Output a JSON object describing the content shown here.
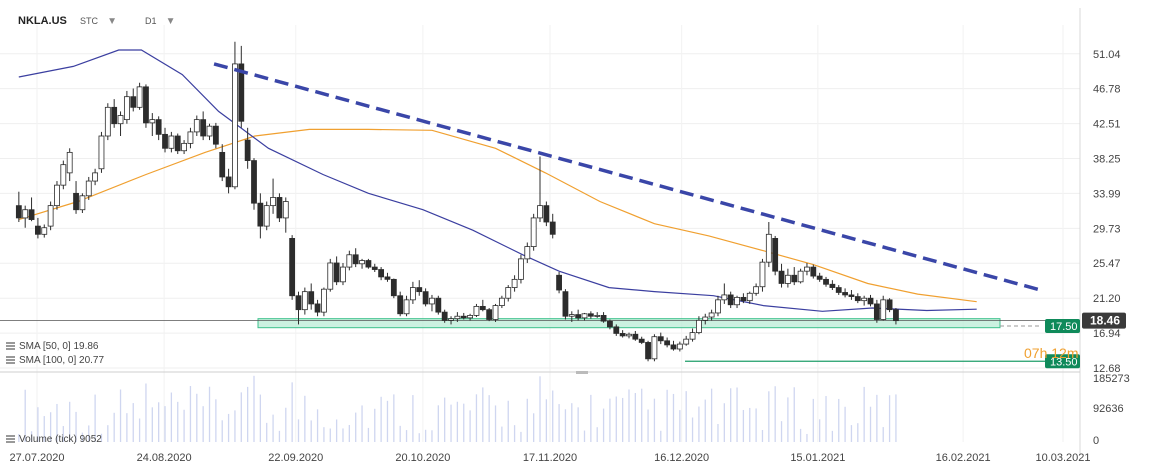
{
  "header": {
    "symbol": "NKLA.US",
    "chart_type": "STC",
    "timeframe": "D1",
    "dropdown_glyph": "▼"
  },
  "indicators": [
    {
      "label": "SMA [50, 0] 19.86",
      "color": "#3b3fa0"
    },
    {
      "label": "SMA [100, 0] 20.77",
      "color": "#f0a030"
    }
  ],
  "volume_label": "Volume (tick) 9052",
  "countdown": "07h 12m",
  "price_badges": {
    "current": "18.46",
    "zone": "17.50",
    "support": "13.50"
  },
  "colors": {
    "bull_body": "#ffffff",
    "bear_body": "#2c2c2c",
    "sma50": "#3b3fa0",
    "sma100": "#f0a030",
    "trendline": "#3a46a8",
    "zone_fill": "#b9ecd6",
    "zone_stroke": "#3cc08c",
    "support_line": "#1f9e6a",
    "badge_green": "#0f8a5a",
    "badge_dark": "#3a3a3a",
    "countdown": "#f0a030"
  },
  "chart_data": {
    "type": "candlestick",
    "y_ticks": [
      51.04,
      46.78,
      42.51,
      38.25,
      33.99,
      29.73,
      25.47,
      21.2,
      16.94,
      12.68
    ],
    "y_tick_labels": [
      "51.04",
      "46.78",
      "42.51",
      "38.25",
      "33.99",
      "29.73",
      "25.47",
      "21.20",
      "16.94",
      "12.68"
    ],
    "ylim": [
      12.68,
      53.0
    ],
    "volume_ticks": [
      "185273",
      "92636",
      "0"
    ],
    "volume_max": 185273,
    "x_range": [
      "2020-07-23",
      "2021-03-12"
    ],
    "x_ticks": [
      "2020-07-27",
      "2020-08-24",
      "2020-09-22",
      "2020-10-20",
      "2020-11-17",
      "2020-12-16",
      "2021-01-15",
      "2021-02-16",
      "2021-03-10"
    ],
    "x_tick_labels": [
      "27.07.2020",
      "24.08.2020",
      "22.09.2020",
      "20.10.2020",
      "17.11.2020",
      "16.12.2020",
      "15.01.2021",
      "16.02.2021",
      "10.03.2021"
    ],
    "candles": {
      "start_date": "2020-07-23",
      "step_days": 1.4,
      "ohlc": [
        [
          32.5,
          34.2,
          30.5,
          31.0
        ],
        [
          31.0,
          32.5,
          29.8,
          32.0
        ],
        [
          32.0,
          33.5,
          30.6,
          30.8
        ],
        [
          30.0,
          31.0,
          28.5,
          29.0
        ],
        [
          29.0,
          30.2,
          28.6,
          29.8
        ],
        [
          30.0,
          33.0,
          29.5,
          32.5
        ],
        [
          32.5,
          35.5,
          32.0,
          35.0
        ],
        [
          35.0,
          38.0,
          34.5,
          37.5
        ],
        [
          36.5,
          39.5,
          35.5,
          39.0
        ],
        [
          34.0,
          35.5,
          31.5,
          32.0
        ],
        [
          32.0,
          34.0,
          31.6,
          33.7
        ],
        [
          33.7,
          36.0,
          33.2,
          35.5
        ],
        [
          35.5,
          37.0,
          35.0,
          36.5
        ],
        [
          37.0,
          41.5,
          36.5,
          41.0
        ],
        [
          41.0,
          45.0,
          40.5,
          44.5
        ],
        [
          44.5,
          45.5,
          42.0,
          42.5
        ],
        [
          42.5,
          44.0,
          41.0,
          43.5
        ],
        [
          43.0,
          46.5,
          42.5,
          45.8
        ],
        [
          45.8,
          46.8,
          44.0,
          44.5
        ],
        [
          44.5,
          47.5,
          44.2,
          47.0
        ],
        [
          47.0,
          47.3,
          42.0,
          42.6
        ],
        [
          42.6,
          43.8,
          41.0,
          43.0
        ],
        [
          43.0,
          43.4,
          40.5,
          41.2
        ],
        [
          41.2,
          42.0,
          39.0,
          39.5
        ],
        [
          39.5,
          41.5,
          39.0,
          41.0
        ],
        [
          41.0,
          41.3,
          38.8,
          39.2
        ],
        [
          39.2,
          40.5,
          38.8,
          40.1
        ],
        [
          40.1,
          42.0,
          39.5,
          41.5
        ],
        [
          41.5,
          43.5,
          41.0,
          43.0
        ],
        [
          43.0,
          44.0,
          40.5,
          41.0
        ],
        [
          41.0,
          42.5,
          40.5,
          42.2
        ],
        [
          42.2,
          42.6,
          39.5,
          40.0
        ],
        [
          39.0,
          40.0,
          35.5,
          36.0
        ],
        [
          36.0,
          37.0,
          34.0,
          34.8
        ],
        [
          34.8,
          52.5,
          34.5,
          49.8
        ],
        [
          49.8,
          52.0,
          42.0,
          42.8
        ],
        [
          40.5,
          42.0,
          37.0,
          38.0
        ],
        [
          38.0,
          38.3,
          32.0,
          32.8
        ],
        [
          32.8,
          34.0,
          28.5,
          30.0
        ],
        [
          30.0,
          33.0,
          29.5,
          32.5
        ],
        [
          32.5,
          35.8,
          31.5,
          33.5
        ],
        [
          33.5,
          34.0,
          30.5,
          31.0
        ],
        [
          31.0,
          33.5,
          29.2,
          33.0
        ],
        [
          28.5,
          28.9,
          21.0,
          21.5
        ],
        [
          21.5,
          22.0,
          18.0,
          19.8
        ],
        [
          19.8,
          22.5,
          19.2,
          22.0
        ],
        [
          22.0,
          23.0,
          19.8,
          20.5
        ],
        [
          20.5,
          21.0,
          19.0,
          19.5
        ],
        [
          19.5,
          22.5,
          19.0,
          22.3
        ],
        [
          22.3,
          26.0,
          22.0,
          25.5
        ],
        [
          25.5,
          26.3,
          22.8,
          23.2
        ],
        [
          23.2,
          25.5,
          22.8,
          25.0
        ],
        [
          25.0,
          27.0,
          24.6,
          26.5
        ],
        [
          26.5,
          27.3,
          25.0,
          25.4
        ],
        [
          25.4,
          26.0,
          24.8,
          25.8
        ],
        [
          25.8,
          26.0,
          24.8,
          25.0
        ],
        [
          25.0,
          25.4,
          24.4,
          24.7
        ],
        [
          24.7,
          25.0,
          23.4,
          23.8
        ],
        [
          23.8,
          24.3,
          23.2,
          23.5
        ],
        [
          23.5,
          23.6,
          21.2,
          21.5
        ],
        [
          21.5,
          22.0,
          19.0,
          19.3
        ],
        [
          19.3,
          21.5,
          19.0,
          21.0
        ],
        [
          21.0,
          23.2,
          20.5,
          22.5
        ],
        [
          22.5,
          23.4,
          21.5,
          22.0
        ],
        [
          22.0,
          22.4,
          20.2,
          20.5
        ],
        [
          20.5,
          21.6,
          19.6,
          21.2
        ],
        [
          21.2,
          21.5,
          19.2,
          19.5
        ],
        [
          19.5,
          19.8,
          18.2,
          18.5
        ],
        [
          18.5,
          19.0,
          18.0,
          18.7
        ],
        [
          18.7,
          19.5,
          18.3,
          19.0
        ],
        [
          19.0,
          19.4,
          18.6,
          18.8
        ],
        [
          18.8,
          19.3,
          18.5,
          19.1
        ],
        [
          19.1,
          20.5,
          18.9,
          20.2
        ],
        [
          20.2,
          21.0,
          19.6,
          19.8
        ],
        [
          19.8,
          20.0,
          18.4,
          18.6
        ],
        [
          18.6,
          20.5,
          18.3,
          20.3
        ],
        [
          20.3,
          21.5,
          20.0,
          21.2
        ],
        [
          21.2,
          22.8,
          20.8,
          22.5
        ],
        [
          22.5,
          24.0,
          22.0,
          23.5
        ],
        [
          23.5,
          26.5,
          23.0,
          26.0
        ],
        [
          26.0,
          28.0,
          25.5,
          27.5
        ],
        [
          27.5,
          31.5,
          27.0,
          31.0
        ],
        [
          31.0,
          38.5,
          30.5,
          32.5
        ],
        [
          32.5,
          33.0,
          30.0,
          30.5
        ],
        [
          30.5,
          31.5,
          28.5,
          29.0
        ],
        [
          24.0,
          24.4,
          21.8,
          22.2
        ],
        [
          22.0,
          22.3,
          18.6,
          19.0
        ],
        [
          19.0,
          19.6,
          18.3,
          19.2
        ],
        [
          19.2,
          19.8,
          18.5,
          18.8
        ],
        [
          18.8,
          19.4,
          18.5,
          19.3
        ],
        [
          19.3,
          19.6,
          18.7,
          19.0
        ],
        [
          19.0,
          19.5,
          18.8,
          19.1
        ],
        [
          19.1,
          19.5,
          18.2,
          18.4
        ],
        [
          18.4,
          18.6,
          17.4,
          17.7
        ],
        [
          17.7,
          18.0,
          16.6,
          16.9
        ],
        [
          16.9,
          17.3,
          16.4,
          16.6
        ],
        [
          16.6,
          17.0,
          16.3,
          16.8
        ],
        [
          16.8,
          17.2,
          16.0,
          16.2
        ],
        [
          16.2,
          16.5,
          15.6,
          15.8
        ],
        [
          15.8,
          16.0,
          13.5,
          13.8
        ],
        [
          13.8,
          16.8,
          13.5,
          16.5
        ],
        [
          16.5,
          17.0,
          15.6,
          16.0
        ],
        [
          16.0,
          16.4,
          15.2,
          15.5
        ],
        [
          15.5,
          16.0,
          14.8,
          15.0
        ],
        [
          15.0,
          15.9,
          14.7,
          15.6
        ],
        [
          15.6,
          16.6,
          15.4,
          16.2
        ],
        [
          16.2,
          17.5,
          15.9,
          17.0
        ],
        [
          17.0,
          19.0,
          16.8,
          18.5
        ],
        [
          18.5,
          19.3,
          18.0,
          18.9
        ],
        [
          18.9,
          19.8,
          18.5,
          19.4
        ],
        [
          19.4,
          21.5,
          19.0,
          21.0
        ],
        [
          21.0,
          23.0,
          20.5,
          21.6
        ],
        [
          21.6,
          22.0,
          20.0,
          20.4
        ],
        [
          20.4,
          21.5,
          20.0,
          21.3
        ],
        [
          21.3,
          21.8,
          20.6,
          20.9
        ],
        [
          20.9,
          22.0,
          20.5,
          21.8
        ],
        [
          21.8,
          23.0,
          21.5,
          22.6
        ],
        [
          22.6,
          26.0,
          22.0,
          25.6
        ],
        [
          25.6,
          30.5,
          25.0,
          29.0
        ],
        [
          28.5,
          28.8,
          24.0,
          24.5
        ],
        [
          24.5,
          25.4,
          22.5,
          23.0
        ],
        [
          23.0,
          24.8,
          22.5,
          24.0
        ],
        [
          24.0,
          25.0,
          22.8,
          23.2
        ],
        [
          23.2,
          24.8,
          23.0,
          24.5
        ],
        [
          24.5,
          25.5,
          24.0,
          25.0
        ],
        [
          25.0,
          25.3,
          23.6,
          23.9
        ],
        [
          23.9,
          24.3,
          23.2,
          23.5
        ],
        [
          23.5,
          23.8,
          22.6,
          22.9
        ],
        [
          22.9,
          23.4,
          22.2,
          22.5
        ],
        [
          22.5,
          22.8,
          21.6,
          21.9
        ],
        [
          21.9,
          22.4,
          21.3,
          21.6
        ],
        [
          21.6,
          22.2,
          21.0,
          21.4
        ],
        [
          21.4,
          21.8,
          20.6,
          20.9
        ],
        [
          20.9,
          21.5,
          20.3,
          21.2
        ],
        [
          21.2,
          21.6,
          20.2,
          20.5
        ],
        [
          20.5,
          21.0,
          18.2,
          18.6
        ],
        [
          18.6,
          21.5,
          18.5,
          21.0
        ],
        [
          21.0,
          21.2,
          19.5,
          19.8
        ],
        [
          19.8,
          20.0,
          18.0,
          18.46
        ]
      ]
    },
    "sma50": [
      [
        "2020-07-23",
        48.2
      ],
      [
        "2020-08-04",
        49.5
      ],
      [
        "2020-08-14",
        51.5
      ],
      [
        "2020-08-19",
        51.5
      ],
      [
        "2020-08-28",
        48.5
      ],
      [
        "2020-09-05",
        44.0
      ],
      [
        "2020-09-16",
        39.5
      ],
      [
        "2020-09-28",
        36.3
      ],
      [
        "2020-10-08",
        34.0
      ],
      [
        "2020-10-20",
        32.0
      ],
      [
        "2020-10-31",
        29.5
      ],
      [
        "2020-11-11",
        26.5
      ],
      [
        "2020-11-19",
        24.5
      ],
      [
        "2020-11-30",
        22.5
      ],
      [
        "2020-12-10",
        22.0
      ],
      [
        "2020-12-23",
        21.5
      ],
      [
        "2021-01-03",
        20.3
      ],
      [
        "2021-01-16",
        19.6
      ],
      [
        "2021-01-27",
        20.0
      ],
      [
        "2021-02-08",
        19.7
      ],
      [
        "2021-02-19",
        19.86
      ]
    ],
    "sma100": [
      [
        "2020-07-23",
        30.8
      ],
      [
        "2020-08-05",
        33.0
      ],
      [
        "2020-08-20",
        36.3
      ],
      [
        "2020-09-02",
        39.0
      ],
      [
        "2020-09-13",
        41.0
      ],
      [
        "2020-09-25",
        41.8
      ],
      [
        "2020-10-08",
        41.8
      ],
      [
        "2020-10-22",
        41.7
      ],
      [
        "2020-11-05",
        39.5
      ],
      [
        "2020-11-16",
        36.5
      ],
      [
        "2020-11-28",
        33.0
      ],
      [
        "2020-12-10",
        30.3
      ],
      [
        "2020-12-22",
        28.8
      ],
      [
        "2021-01-03",
        27.0
      ],
      [
        "2021-01-14",
        25.3
      ],
      [
        "2021-01-26",
        23.0
      ],
      [
        "2021-02-06",
        21.7
      ],
      [
        "2021-02-19",
        20.77
      ]
    ],
    "trendline": [
      [
        "2020-09-04",
        49.8
      ],
      [
        "2021-03-05",
        22.2
      ]
    ],
    "support_zone": [
      17.6,
      18.7
    ],
    "support_level": 13.5,
    "current_price": 18.46,
    "legend": "top-left"
  }
}
